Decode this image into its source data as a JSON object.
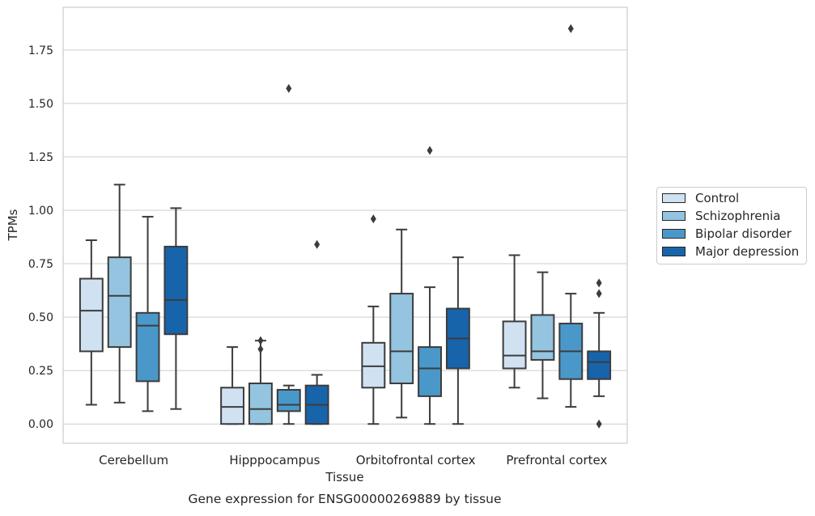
{
  "chart_data": {
    "type": "boxplot",
    "title": "Gene expression for ENSG00000269889 by tissue",
    "xlabel": "Tissue",
    "ylabel": "TPMs",
    "ylim": [
      -0.09,
      1.95
    ],
    "yticks": [
      "0.00",
      "0.25",
      "0.50",
      "0.75",
      "1.00",
      "1.25",
      "1.50",
      "1.75"
    ],
    "ytick_values": [
      0,
      0.25,
      0.5,
      0.75,
      1.0,
      1.25,
      1.5,
      1.75
    ],
    "grid": "horizontal",
    "legend_placement": "right",
    "categories": [
      "Cerebellum",
      "Hipppocampus",
      "Orbitofrontal cortex",
      "Prefrontal cortex"
    ],
    "series": [
      {
        "name": "Control",
        "color": "#d0e1f2",
        "boxes": [
          {
            "whislo": 0.09,
            "q1": 0.34,
            "med": 0.53,
            "q3": 0.68,
            "whishi": 0.86,
            "fliers": []
          },
          {
            "whislo": 0.0,
            "q1": 0.0,
            "med": 0.08,
            "q3": 0.17,
            "whishi": 0.36,
            "fliers": []
          },
          {
            "whislo": 0.0,
            "q1": 0.17,
            "med": 0.27,
            "q3": 0.38,
            "whishi": 0.55,
            "fliers": [
              0.96
            ]
          },
          {
            "whislo": 0.17,
            "q1": 0.26,
            "med": 0.32,
            "q3": 0.48,
            "whishi": 0.79,
            "fliers": []
          }
        ]
      },
      {
        "name": "Schizophrenia",
        "color": "#94c4df",
        "boxes": [
          {
            "whislo": 0.1,
            "q1": 0.36,
            "med": 0.6,
            "q3": 0.78,
            "whishi": 1.12,
            "fliers": []
          },
          {
            "whislo": 0.0,
            "q1": 0.0,
            "med": 0.07,
            "q3": 0.19,
            "whishi": 0.39,
            "fliers": [
              0.39,
              0.35
            ]
          },
          {
            "whislo": 0.03,
            "q1": 0.19,
            "med": 0.34,
            "q3": 0.61,
            "whishi": 0.91,
            "fliers": []
          },
          {
            "whislo": 0.12,
            "q1": 0.3,
            "med": 0.34,
            "q3": 0.51,
            "whishi": 0.71,
            "fliers": []
          }
        ]
      },
      {
        "name": "Bipolar disorder",
        "color": "#4a98c9",
        "boxes": [
          {
            "whislo": 0.06,
            "q1": 0.2,
            "med": 0.46,
            "q3": 0.52,
            "whishi": 0.97,
            "fliers": []
          },
          {
            "whislo": 0.0,
            "q1": 0.06,
            "med": 0.09,
            "q3": 0.16,
            "whishi": 0.18,
            "fliers": [
              1.57
            ]
          },
          {
            "whislo": 0.0,
            "q1": 0.13,
            "med": 0.26,
            "q3": 0.36,
            "whishi": 0.64,
            "fliers": [
              1.28
            ]
          },
          {
            "whislo": 0.08,
            "q1": 0.21,
            "med": 0.34,
            "q3": 0.47,
            "whishi": 0.61,
            "fliers": [
              1.85
            ]
          }
        ]
      },
      {
        "name": "Major depression",
        "color": "#1764ab",
        "boxes": [
          {
            "whislo": 0.07,
            "q1": 0.42,
            "med": 0.58,
            "q3": 0.83,
            "whishi": 1.01,
            "fliers": []
          },
          {
            "whislo": 0.0,
            "q1": 0.0,
            "med": 0.09,
            "q3": 0.18,
            "whishi": 0.23,
            "fliers": [
              0.84
            ]
          },
          {
            "whislo": 0.0,
            "q1": 0.26,
            "med": 0.4,
            "q3": 0.54,
            "whishi": 0.78,
            "fliers": []
          },
          {
            "whislo": 0.13,
            "q1": 0.21,
            "med": 0.29,
            "q3": 0.34,
            "whishi": 0.52,
            "fliers": [
              0.66,
              0.61,
              0.0
            ]
          }
        ]
      }
    ]
  }
}
